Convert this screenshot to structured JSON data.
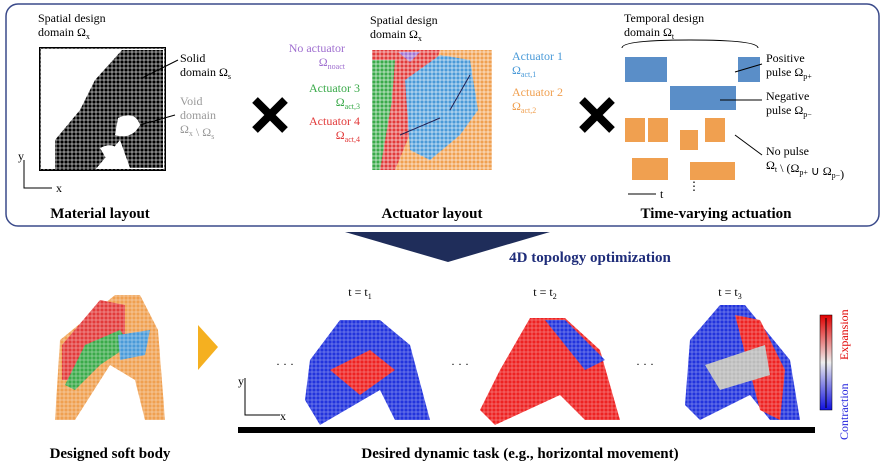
{
  "top_panels": {
    "material": {
      "domain": [
        [
          {
            "text": "Spatial design"
          }
        ],
        [
          {
            "text": "domain Ω",
            "sub": "x"
          }
        ]
      ],
      "solid": [
        [
          {
            "text": "Solid"
          }
        ],
        [
          {
            "text": "domain Ω",
            "sub": "s"
          }
        ]
      ],
      "void": [
        [
          {
            "text": "Void"
          }
        ],
        [
          {
            "text": "domain"
          }
        ],
        [
          {
            "text": "Ω",
            "sub": "x"
          },
          {
            "text": " \\ Ω",
            "sub": "s"
          }
        ]
      ],
      "axis_y": "y",
      "axis_x": "x",
      "caption": "Material layout"
    },
    "actuator": {
      "domain": [
        [
          {
            "text": "Spatial design"
          }
        ],
        [
          {
            "text": "domain Ω",
            "sub": "x"
          }
        ]
      ],
      "no_act": [
        [
          {
            "text": "No actuator"
          }
        ],
        [
          {
            "text": "Ω",
            "sub": "noact"
          }
        ]
      ],
      "act1": [
        [
          {
            "text": "Actuator 1"
          }
        ],
        [
          {
            "text": "Ω",
            "sub": "act,1"
          }
        ]
      ],
      "act2": [
        [
          {
            "text": "Actuator 2"
          }
        ],
        [
          {
            "text": "Ω",
            "sub": "act,2"
          }
        ]
      ],
      "act3": [
        [
          {
            "text": "Actuator 3"
          }
        ],
        [
          {
            "text": "Ω",
            "sub": "act,3"
          }
        ]
      ],
      "act4": [
        [
          {
            "text": "Actuator 4"
          }
        ],
        [
          {
            "text": "Ω",
            "sub": "act,4"
          }
        ]
      ],
      "caption": "Actuator layout"
    },
    "temporal": {
      "domain": [
        [
          {
            "text": "Temporal design"
          }
        ],
        [
          {
            "text": "domain Ω",
            "sub": "t"
          }
        ]
      ],
      "positive": [
        [
          {
            "text": "Positive"
          }
        ],
        [
          {
            "text": "pulse Ω",
            "sub": "p+"
          }
        ]
      ],
      "negative": [
        [
          {
            "text": "Negative"
          }
        ],
        [
          {
            "text": "pulse Ω",
            "sub": "p−"
          }
        ]
      ],
      "no_pulse": [
        [
          {
            "text": "No pulse"
          }
        ],
        [
          {
            "text": "Ω",
            "sub": "t"
          },
          {
            "text": " \\ (Ω",
            "sub": "p+"
          },
          {
            "text": " ∪ Ω",
            "sub": "p−"
          },
          {
            "text": ")"
          }
        ]
      ],
      "axis_t": "t",
      "ellipsis": "⋮",
      "caption": "Time-varying actuation"
    }
  },
  "arrow_label": "4D topology optimization",
  "bottom": {
    "times": [
      [
        [
          {
            "text": "t = t",
            "sub": "1"
          }
        ]
      ],
      [
        [
          {
            "text": "t = t",
            "sub": "2"
          }
        ]
      ],
      [
        [
          {
            "text": "t = t",
            "sub": "3"
          }
        ]
      ]
    ],
    "ellipsis": "· · ·",
    "axis_y": "y",
    "axis_x": "x",
    "expansion": "Expansion",
    "contraction": "Contraction",
    "caption_left": "Designed soft body",
    "caption_right": "Desired dynamic task (e.g., horizontal movement)"
  }
}
